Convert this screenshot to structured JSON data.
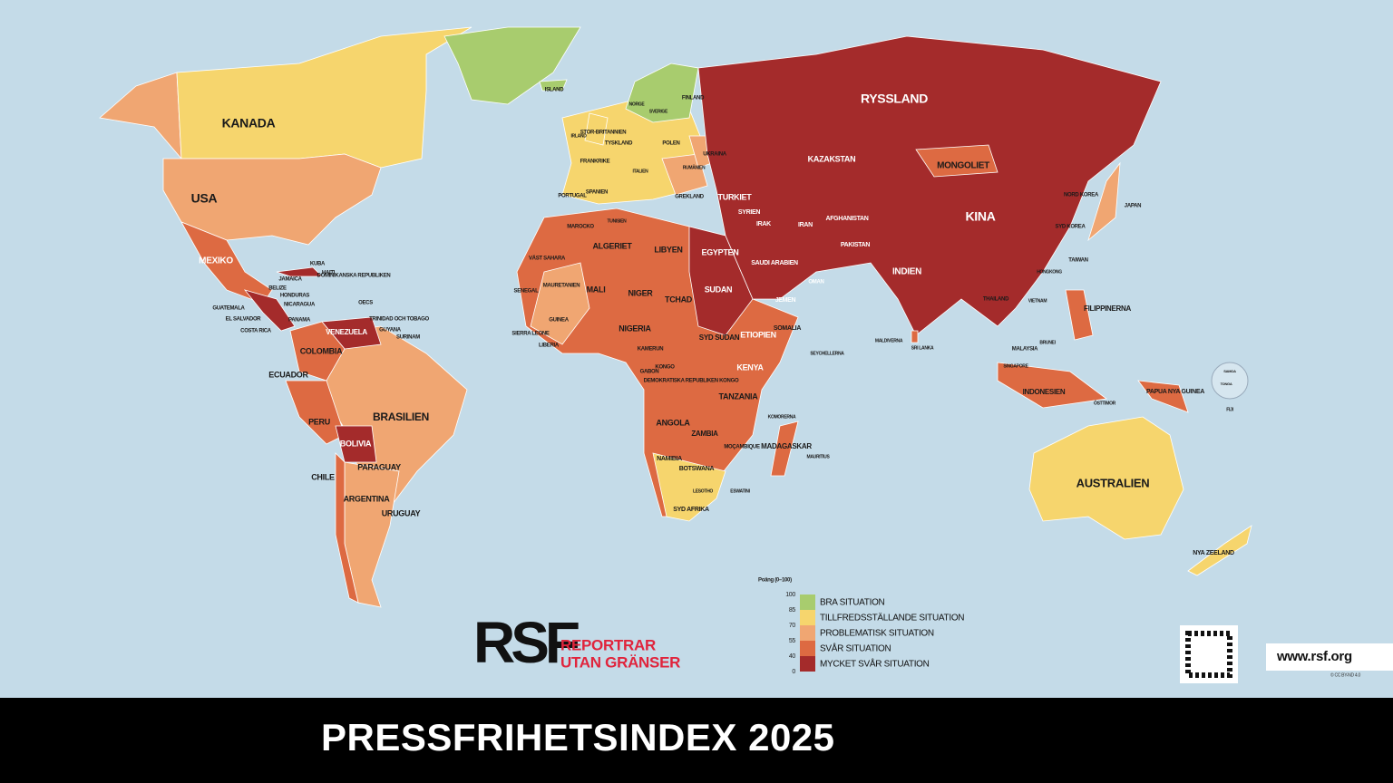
{
  "header": {
    "title": "PRESSFRIHETSINDEX 2025"
  },
  "logo": {
    "mark": "RSF",
    "line1": "REPORTRAR",
    "line2": "UTAN GRÄNSER"
  },
  "url": "www.rsf.org",
  "license": "© CC BY-ND 4.0",
  "legend": {
    "title": "Poäng (0–100)",
    "scale": [
      100,
      85,
      70,
      55,
      40,
      0
    ],
    "items": [
      {
        "label": "BRA SITUATION",
        "color": "#a8cc6e"
      },
      {
        "label": "TILLFREDSSTÄLLANDE SITUATION",
        "color": "#f6d56d"
      },
      {
        "label": "PROBLEMATISK SITUATION",
        "color": "#f0a672"
      },
      {
        "label": "SVÅR SITUATION",
        "color": "#dd6a42"
      },
      {
        "label": "MYCKET SVÅR SITUATION",
        "color": "#a42b2b"
      }
    ]
  },
  "labels": [
    "KANADA",
    "USA",
    "MEXIKO",
    "KUBA",
    "HAITI",
    "DOMINIKANSKA REPUBLIKEN",
    "JAMAICA",
    "BELIZE",
    "HONDURAS",
    "NICARAGUA",
    "GUATEMALA",
    "EL SALVADOR",
    "COSTA RICA",
    "PANAMA",
    "OECS",
    "TRINIDAD OCH TOBAGO",
    "GUYANA",
    "SURINAM",
    "VENEZUELA",
    "COLOMBIA",
    "ECUADOR",
    "PERU",
    "BRASILIEN",
    "BOLIVIA",
    "PARAGUAY",
    "CHILE",
    "ARGENTINA",
    "URUGUAY",
    "ISLAND",
    "IRLAND",
    "STOR-BRITANNIEN",
    "NORGE",
    "SVERIGE",
    "FINLAND",
    "TYSKLAND",
    "POLEN",
    "UKRAINA",
    "FRANKRIKE",
    "SPANIEN",
    "PORTUGAL",
    "ITALIEN",
    "GREKLAND",
    "RUMÄNIEN",
    "TURKIET",
    "RYSSLAND",
    "KAZAKSTAN",
    "MONGOLIET",
    "KINA",
    "NORD KOREA",
    "SYD KOREA",
    "JAPAN",
    "TAIWAN",
    "HONGKONG",
    "FILIPPINERNA",
    "VIETNAM",
    "THAILAND",
    "MALAYSIA",
    "BRUNEI",
    "SINGAPORE",
    "INDONESIEN",
    "ÖSTTIMOR",
    "PAPUA NYA GUINEA",
    "AUSTRALIEN",
    "NYA ZEELAND",
    "FIJI",
    "SAMOA",
    "TONGA",
    "INDIEN",
    "PAKISTAN",
    "AFGHANISTAN",
    "IRAN",
    "IRAK",
    "SYRIEN",
    "SAUDI ARABIEN",
    "JEMEN",
    "OMAN",
    "EGYPTEN",
    "LIBYEN",
    "ALGERIET",
    "MAROCKO",
    "TUNISIEN",
    "VÄST SAHARA",
    "MAURETANIEN",
    "MALI",
    "NIGER",
    "TCHAD",
    "SUDAN",
    "ETIOPIEN",
    "SOMALIA",
    "SYD SUDAN",
    "NIGERIA",
    "KENYA",
    "TANZANIA",
    "KONGO",
    "DEMOKRATISKA REPUBLIKEN KONGO",
    "ANGOLA",
    "ZAMBIA",
    "NAMIBIA",
    "BOTSWANA",
    "SYD AFRIKA",
    "MADAGASKAR",
    "MOÇAMBIQUE",
    "SENEGAL",
    "GUINEA",
    "SIERRA LEONE",
    "LIBERIA",
    "GABON",
    "KAMERUN",
    "MALDIVERNA",
    "SRI LANKA",
    "SEYCHELLERNA",
    "MAURITIUS",
    "KOMORERNA",
    "ESWATINI",
    "LESOTHO"
  ]
}
